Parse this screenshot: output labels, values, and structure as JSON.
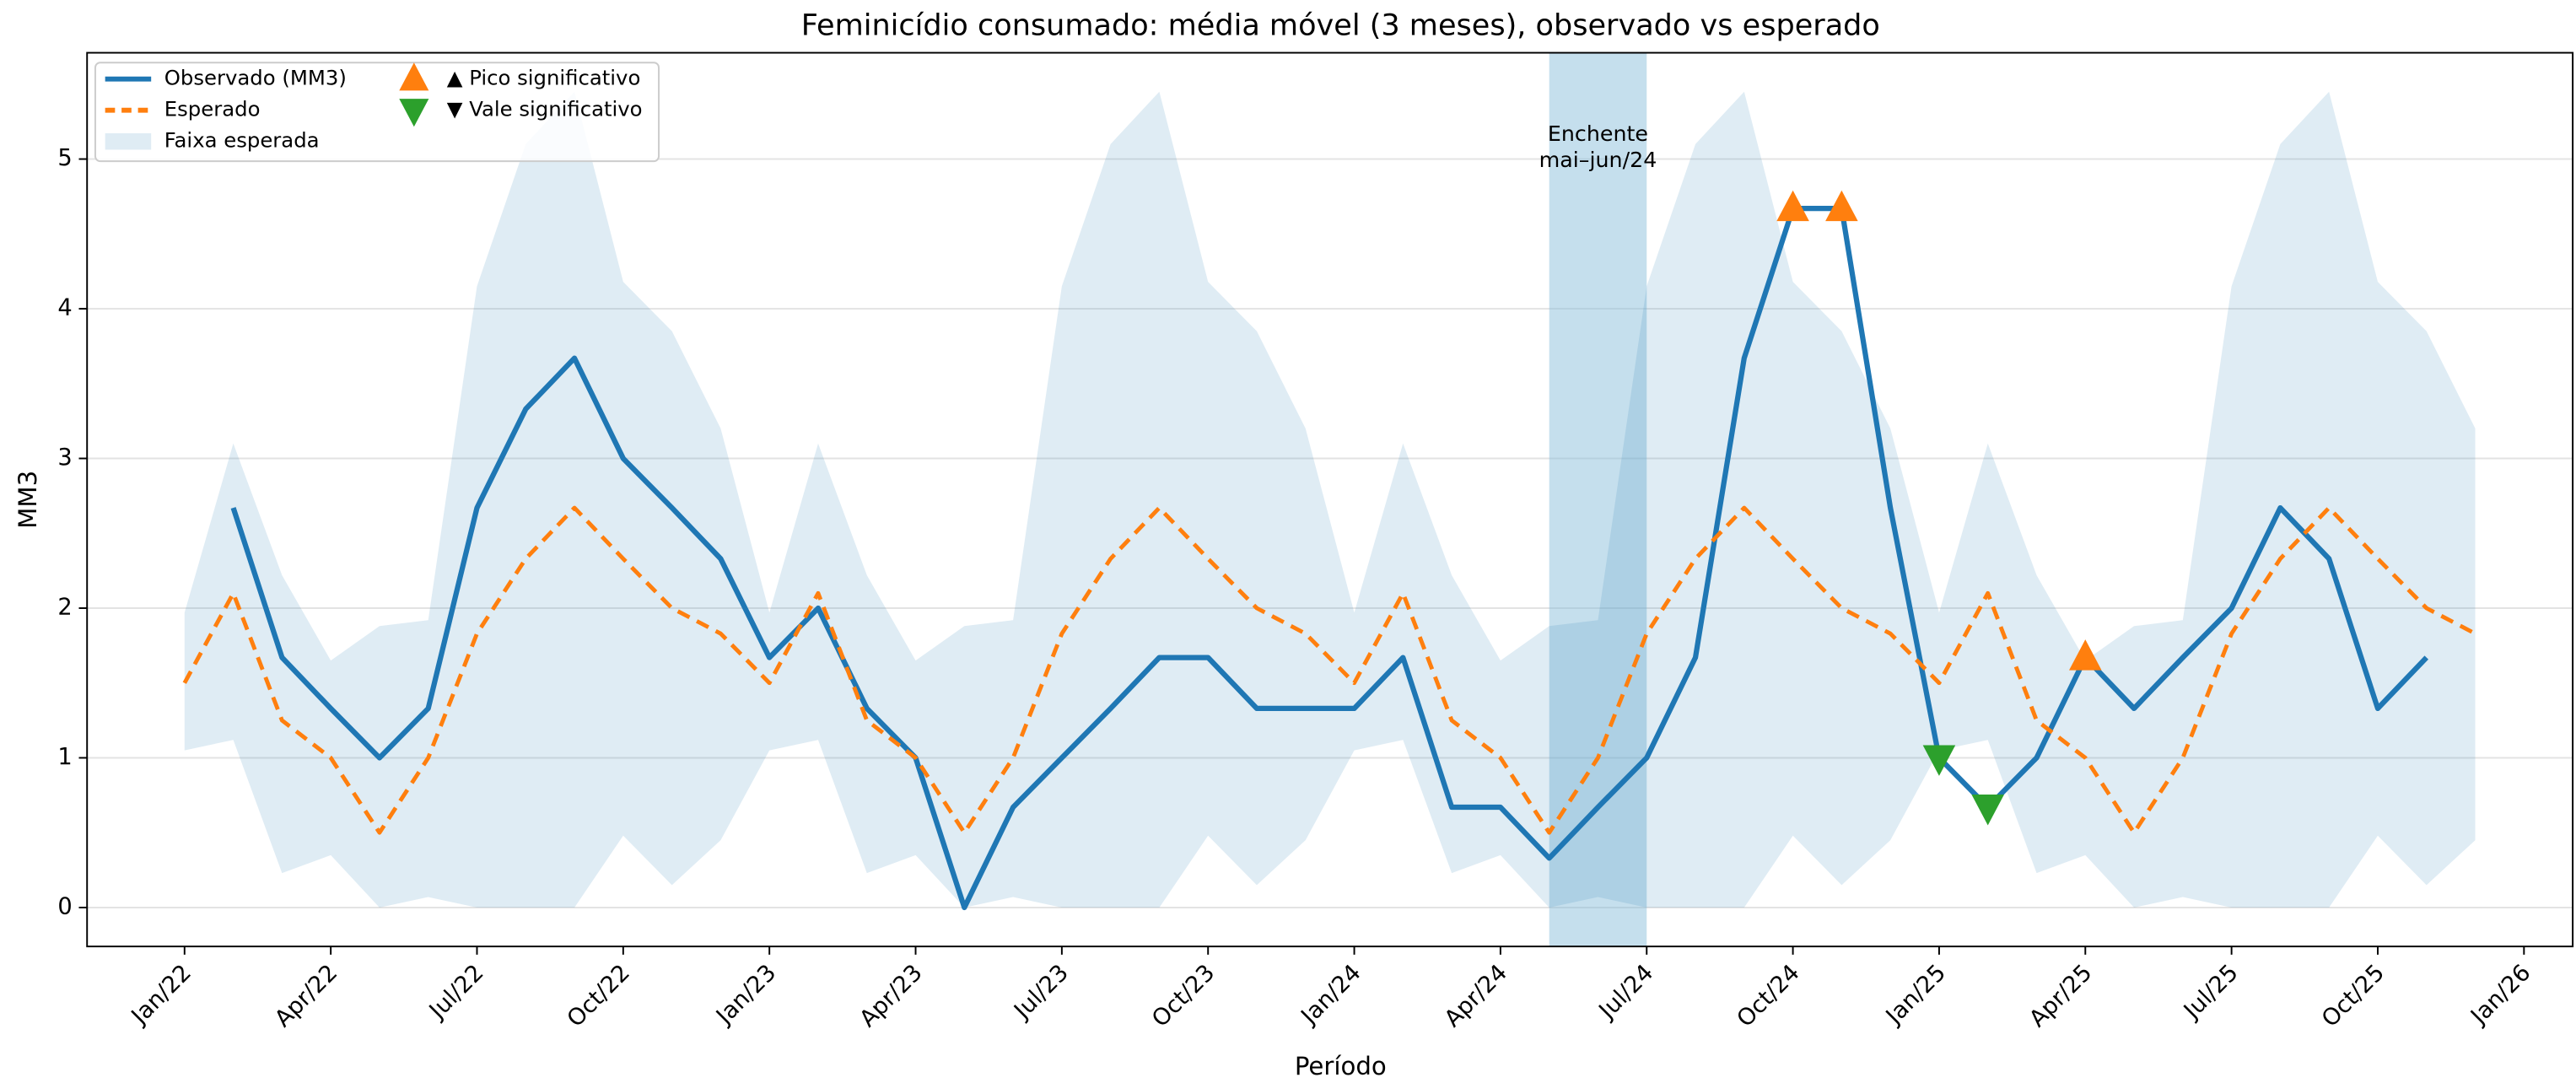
{
  "chart_data": {
    "type": "line",
    "title": "Feminicídio consumado: média móvel (3 meses), observado vs esperado",
    "x_label": "Período",
    "y_label": "MM3",
    "x": [
      "2022-01",
      "2022-02",
      "2022-03",
      "2022-04",
      "2022-05",
      "2022-06",
      "2022-07",
      "2022-08",
      "2022-09",
      "2022-10",
      "2022-11",
      "2022-12",
      "2023-01",
      "2023-02",
      "2023-03",
      "2023-04",
      "2023-05",
      "2023-06",
      "2023-07",
      "2023-08",
      "2023-09",
      "2023-10",
      "2023-11",
      "2023-12",
      "2024-01",
      "2024-02",
      "2024-03",
      "2024-04",
      "2024-05",
      "2024-06",
      "2024-07",
      "2024-08",
      "2024-09",
      "2024-10",
      "2024-11",
      "2024-12",
      "2025-01",
      "2025-02",
      "2025-03",
      "2025-04",
      "2025-05",
      "2025-06",
      "2025-07",
      "2025-08",
      "2025-09",
      "2025-10",
      "2025-11",
      "2025-12"
    ],
    "series": [
      {
        "name": "Observado (MM3)",
        "color": "#1f77b4",
        "style": "solid",
        "values": [
          null,
          2.67,
          1.67,
          1.33,
          1.0,
          1.33,
          2.67,
          3.33,
          3.67,
          3.0,
          2.67,
          2.33,
          1.67,
          2.0,
          1.33,
          1.0,
          0,
          0.67,
          1.0,
          1.33,
          1.67,
          1.67,
          1.33,
          1.33,
          1.33,
          1.67,
          0.67,
          0.67,
          0.33,
          0.67,
          1.0,
          1.67,
          3.67,
          4.67,
          4.67,
          2.67,
          1.0,
          0.67,
          1.0,
          1.67,
          1.33,
          1.67,
          2.0,
          2.67,
          2.33,
          1.33,
          1.67,
          null
        ]
      },
      {
        "name": "Esperado",
        "color": "#ff7f0e",
        "style": "dashed",
        "values": [
          1.5,
          2.1,
          1.25,
          1.0,
          0.5,
          1.0,
          1.83,
          2.33,
          2.67,
          2.33,
          2.0,
          1.83,
          1.5,
          2.1,
          1.25,
          1.0,
          0.5,
          1.0,
          1.83,
          2.33,
          2.67,
          2.33,
          2.0,
          1.83,
          1.5,
          2.1,
          1.25,
          1.0,
          0.5,
          1.0,
          1.83,
          2.33,
          2.67,
          2.33,
          2.0,
          1.83,
          1.5,
          2.1,
          1.25,
          1.0,
          0.5,
          1.0,
          1.83,
          2.33,
          2.67,
          2.33,
          2.0,
          1.83
        ]
      }
    ],
    "band": {
      "name": "Faixa esperada",
      "color": "#1f77b4",
      "opacity": 0.14,
      "lower": [
        1.05,
        1.12,
        0.23,
        0.35,
        0,
        0.07,
        0,
        0,
        0,
        0.48,
        0.15,
        0.45,
        1.05,
        1.12,
        0.23,
        0.35,
        0,
        0.07,
        0,
        0,
        0,
        0.48,
        0.15,
        0.45,
        1.05,
        1.12,
        0.23,
        0.35,
        0,
        0.07,
        0,
        0,
        0,
        0.48,
        0.15,
        0.45,
        1.05,
        1.12,
        0.23,
        0.35,
        0,
        0.07,
        0,
        0,
        0,
        0.48,
        0.15,
        0.45
      ],
      "upper": [
        1.97,
        3.1,
        2.22,
        1.65,
        1.88,
        1.92,
        4.15,
        5.1,
        5.45,
        4.18,
        3.85,
        3.2,
        1.97,
        3.1,
        2.22,
        1.65,
        1.88,
        1.92,
        4.15,
        5.1,
        5.45,
        4.18,
        3.85,
        3.2,
        1.97,
        3.1,
        2.22,
        1.65,
        1.88,
        1.92,
        4.15,
        5.1,
        5.45,
        4.18,
        3.85,
        3.2,
        1.97,
        3.1,
        2.22,
        1.65,
        1.88,
        1.92,
        4.15,
        5.1,
        5.45,
        4.18,
        3.85,
        3.2
      ]
    },
    "markers": [
      {
        "name": "▲ Pico significativo",
        "color": "#ff7f0e",
        "marker": "triangle-up",
        "values": [
          null,
          null,
          null,
          null,
          null,
          null,
          null,
          null,
          null,
          null,
          null,
          null,
          null,
          null,
          null,
          null,
          null,
          null,
          null,
          null,
          null,
          null,
          null,
          null,
          null,
          null,
          null,
          null,
          null,
          null,
          null,
          null,
          null,
          4.67,
          4.67,
          null,
          null,
          null,
          null,
          1.67,
          null,
          null,
          null,
          null,
          null,
          null,
          null,
          null
        ]
      },
      {
        "name": "▼ Vale significativo",
        "color": "#2ca02c",
        "marker": "triangle-down",
        "values": [
          null,
          null,
          null,
          null,
          null,
          null,
          null,
          null,
          null,
          null,
          null,
          null,
          null,
          null,
          null,
          null,
          null,
          null,
          null,
          null,
          null,
          null,
          null,
          null,
          null,
          null,
          null,
          null,
          null,
          null,
          null,
          null,
          null,
          null,
          null,
          null,
          1.0,
          0.67,
          null,
          null,
          null,
          null,
          null,
          null,
          null,
          null,
          null,
          null
        ]
      }
    ],
    "span": {
      "start": "2024-05",
      "end": "2024-07",
      "color": "#7fb8d8",
      "opacity": 0.45,
      "label": [
        "Enchente",
        "mai–jun/24"
      ]
    },
    "xlim": [
      "2021-11",
      "2026-02"
    ],
    "xticks": [
      {
        "value": "2022-01",
        "label": "Jan/22"
      },
      {
        "value": "2022-04",
        "label": "Apr/22"
      },
      {
        "value": "2022-07",
        "label": "Jul/22"
      },
      {
        "value": "2022-10",
        "label": "Oct/22"
      },
      {
        "value": "2023-01",
        "label": "Jan/23"
      },
      {
        "value": "2023-04",
        "label": "Apr/23"
      },
      {
        "value": "2023-07",
        "label": "Jul/23"
      },
      {
        "value": "2023-10",
        "label": "Oct/23"
      },
      {
        "value": "2024-01",
        "label": "Jan/24"
      },
      {
        "value": "2024-04",
        "label": "Apr/24"
      },
      {
        "value": "2024-07",
        "label": "Jul/24"
      },
      {
        "value": "2024-10",
        "label": "Oct/24"
      },
      {
        "value": "2025-01",
        "label": "Jan/25"
      },
      {
        "value": "2025-04",
        "label": "Apr/25"
      },
      {
        "value": "2025-07",
        "label": "Jul/25"
      },
      {
        "value": "2025-10",
        "label": "Oct/25"
      },
      {
        "value": "2026-01",
        "label": "Jan/26"
      }
    ],
    "ylim": [
      -0.26,
      5.71
    ],
    "yticks": [
      0,
      1,
      2,
      3,
      4,
      5
    ],
    "grid": true,
    "legend": "upper-left"
  }
}
